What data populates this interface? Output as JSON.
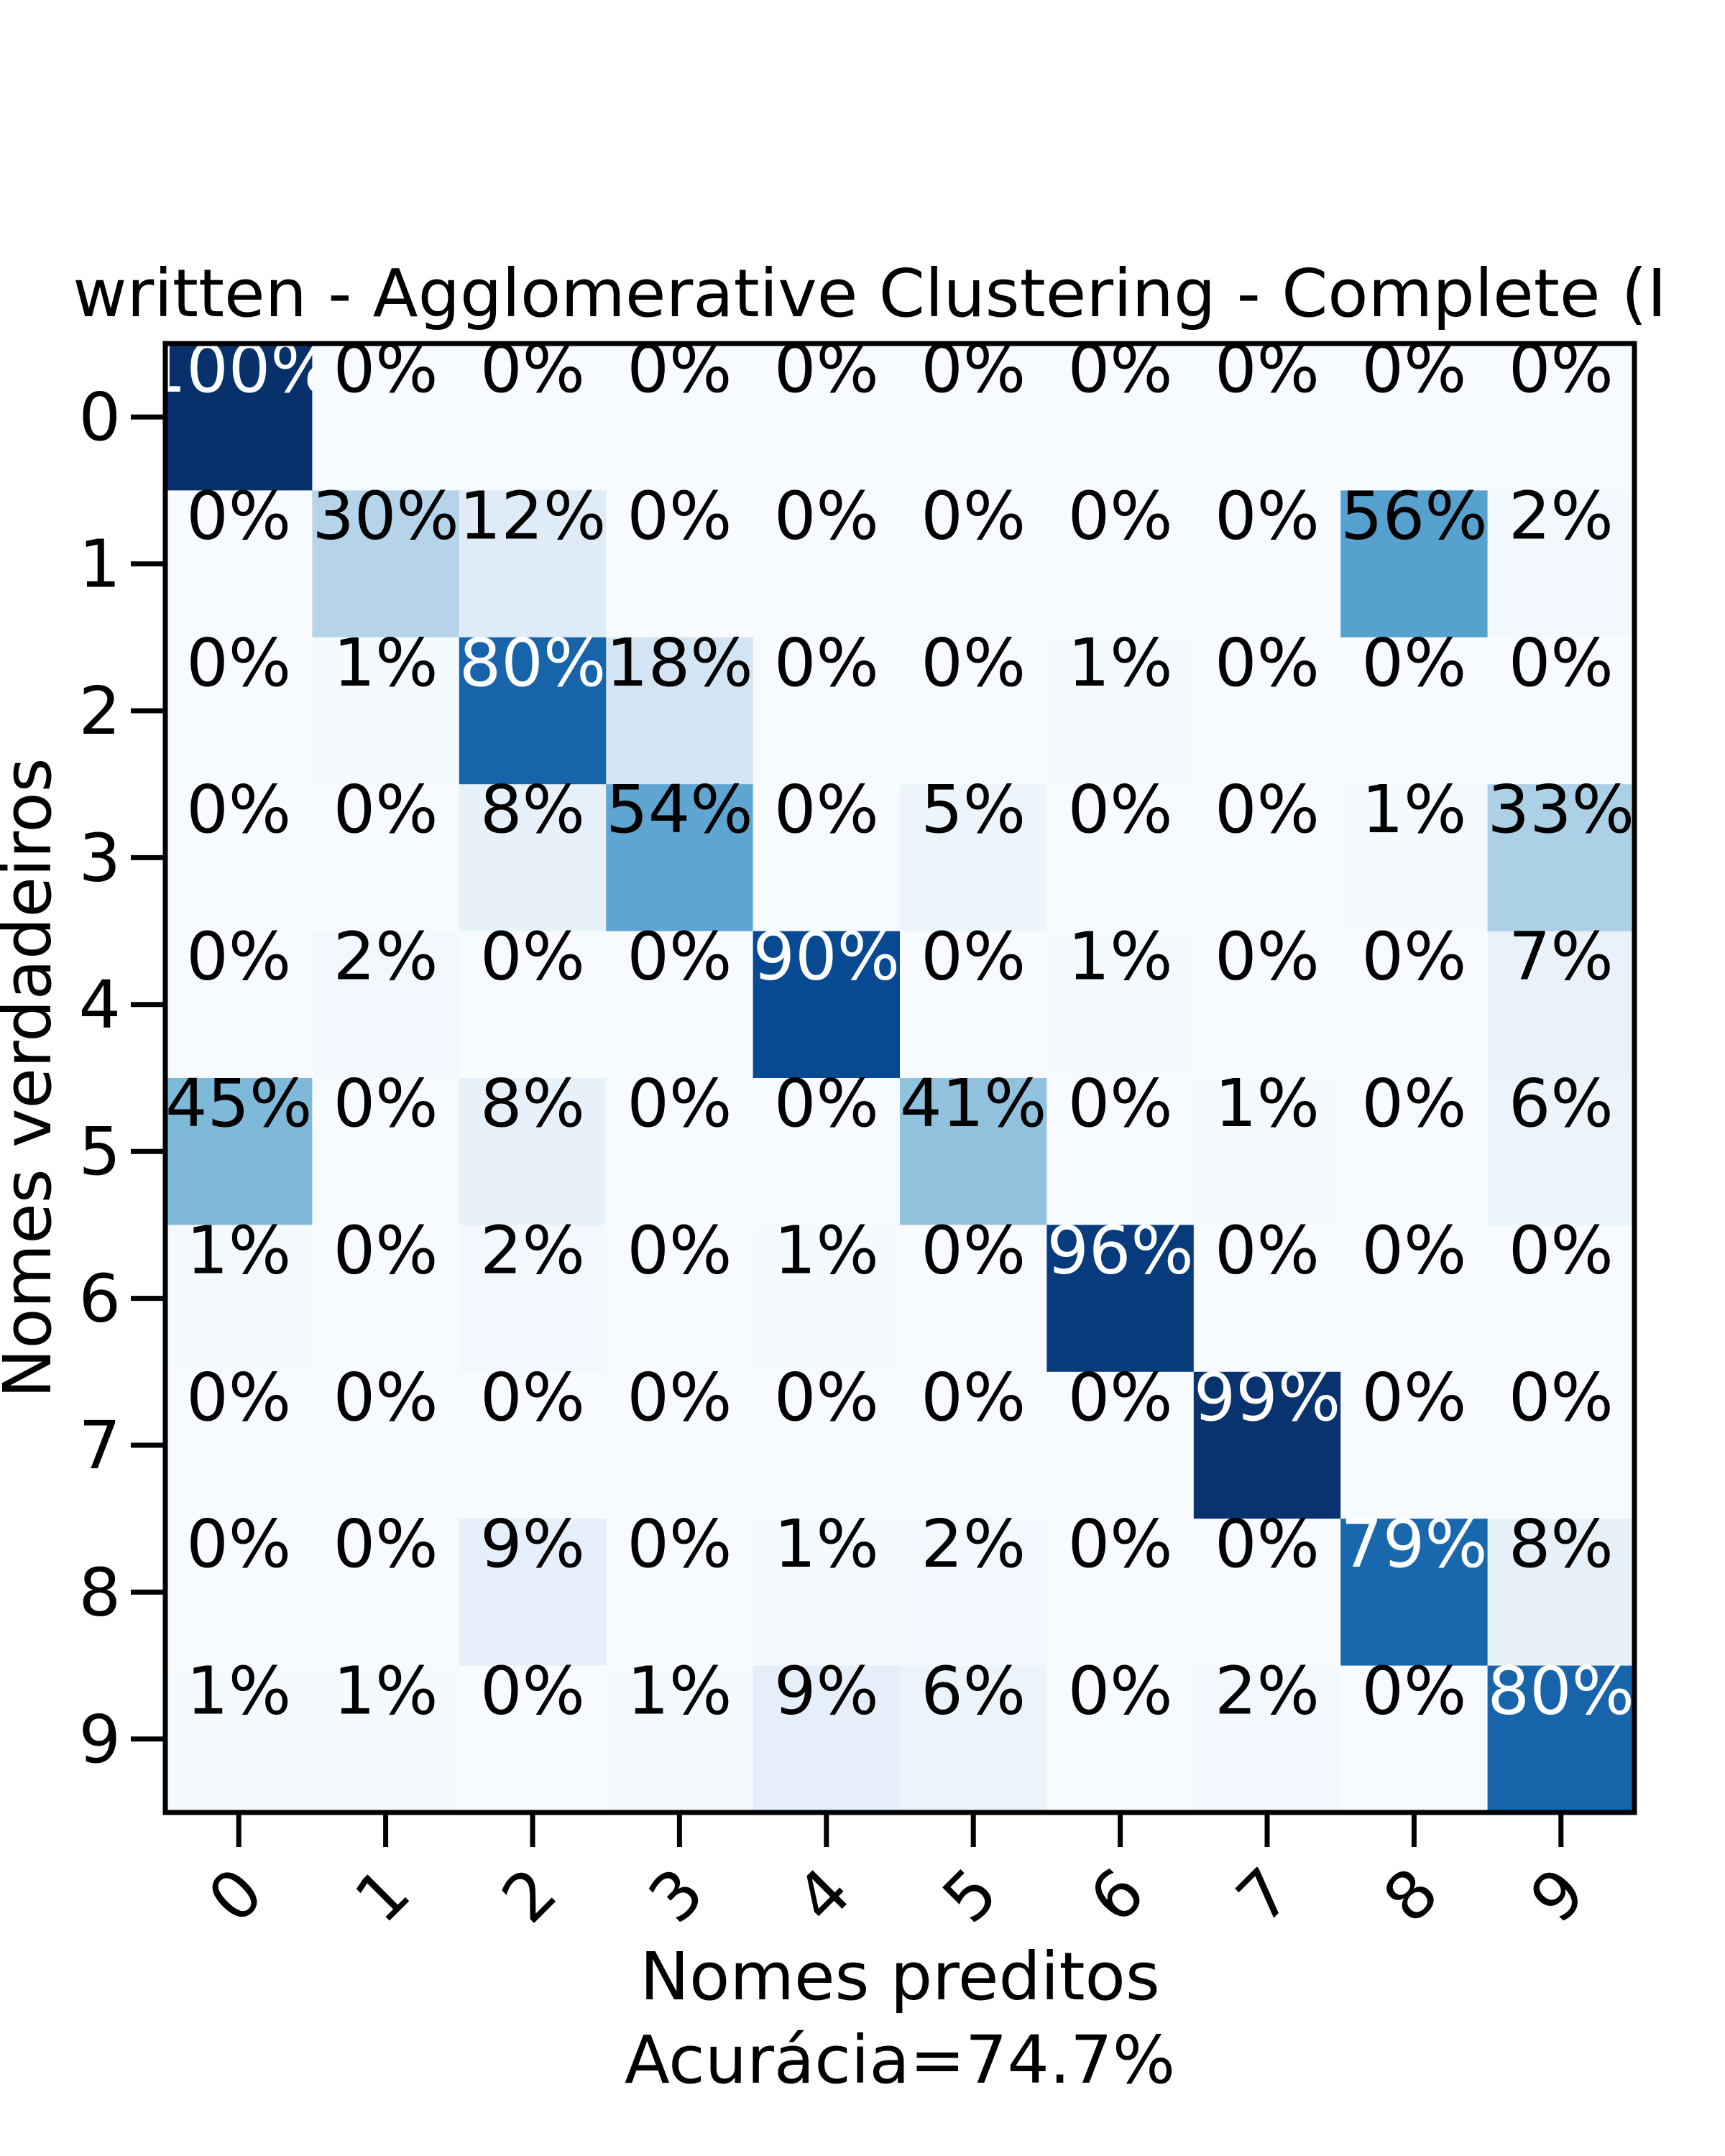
{
  "chart_data": {
    "type": "heatmap",
    "title": "written - Agglomerative Clustering - Complete (I",
    "xlabel": "Nomes preditos",
    "xlabel_sub": "Acurácia=74.7%",
    "ylabel": "Nomes verdadeiros",
    "x_categories": [
      "0",
      "1",
      "2",
      "3",
      "4",
      "5",
      "6",
      "7",
      "8",
      "9"
    ],
    "y_categories": [
      "0",
      "1",
      "2",
      "3",
      "4",
      "5",
      "6",
      "7",
      "8",
      "9"
    ],
    "colormap": "Blues",
    "vmin": 0,
    "vmax": 100,
    "values": [
      [
        100,
        0,
        0,
        0,
        0,
        0,
        0,
        0,
        0,
        0
      ],
      [
        0,
        30,
        12,
        0,
        0,
        0,
        0,
        0,
        56,
        2
      ],
      [
        0,
        1,
        80,
        18,
        0,
        0,
        1,
        0,
        0,
        0
      ],
      [
        0,
        0,
        8,
        54,
        0,
        5,
        0,
        0,
        1,
        33
      ],
      [
        0,
        2,
        0,
        0,
        90,
        0,
        1,
        0,
        0,
        7
      ],
      [
        45,
        0,
        8,
        0,
        0,
        41,
        0,
        1,
        0,
        6
      ],
      [
        1,
        0,
        2,
        0,
        1,
        0,
        96,
        0,
        0,
        0
      ],
      [
        0,
        0,
        0,
        0,
        0,
        0,
        0,
        99,
        0,
        0
      ],
      [
        0,
        0,
        9,
        0,
        1,
        2,
        0,
        0,
        79,
        8
      ],
      [
        1,
        1,
        0,
        1,
        9,
        6,
        0,
        2,
        0,
        80
      ]
    ],
    "value_suffix": "%",
    "grid": false,
    "legend": "none"
  }
}
